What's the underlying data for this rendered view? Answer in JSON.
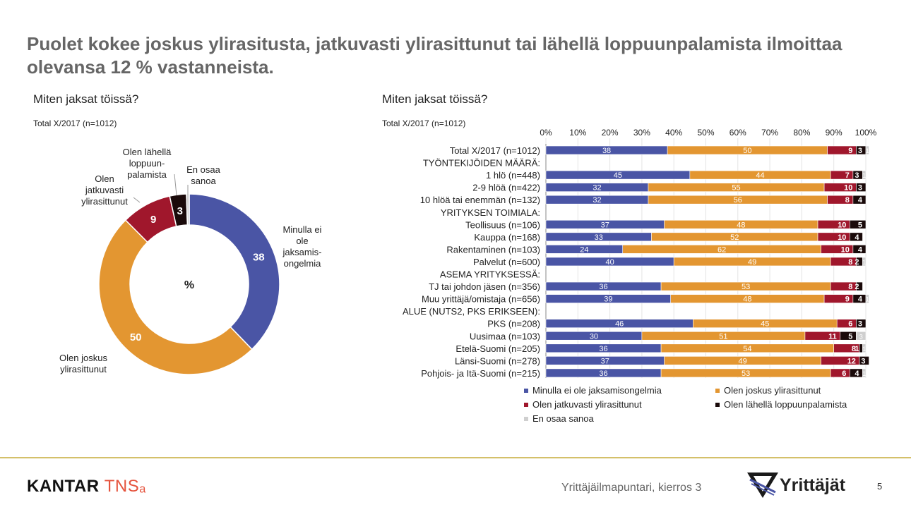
{
  "header": {
    "title": "Puolet kokee joskus ylirasitusta, jatkuvasti ylirasittunut tai lähellä loppuunpalamista ilmoittaa olevansa 12 % vastanneista."
  },
  "left_panel": {
    "question": "Miten jaksat töissä?",
    "sample": "Total X/2017  (n=1012)"
  },
  "right_panel": {
    "question": "Miten jaksat töissä?",
    "sample": "Total X/2017  (n=1012)"
  },
  "footer": {
    "brand_main": "KANTAR ",
    "brand_accent": "TNS",
    "survey": "Yrittäjäilmapuntari, kierros 3",
    "org": "Yrittäjät",
    "page": "5"
  },
  "chart_data": [
    {
      "type": "pie",
      "variant": "donut",
      "center_label": "%",
      "slices": [
        {
          "name": "Minulla ei ole jaksamis-ongelmia",
          "value": 38,
          "color": "#4a55a5"
        },
        {
          "name": "Olen joskus ylirasittunut",
          "value": 50,
          "color": "#e39631"
        },
        {
          "name": "Olen jatkuvasti ylirasittunut",
          "value": 9,
          "color": "#a0172c"
        },
        {
          "name": "Olen lähellä loppuun-palamista",
          "value": 3,
          "color": "#1a0a0a"
        },
        {
          "name": "En osaa sanoa",
          "value": 0.5,
          "color": "#cfcfcf"
        }
      ],
      "value_labels": [
        "38",
        "50",
        "9",
        "3",
        ""
      ],
      "outside_labels": [
        [
          "Minulla ei",
          "ole",
          "jaksamis-",
          "ongelmia"
        ],
        [
          "Olen joskus",
          "ylirasittunut"
        ],
        [
          "Olen",
          "jatkuvasti",
          "ylirasittunut"
        ],
        [
          "Olen lähellä",
          "loppuun-",
          "palamista"
        ],
        [
          "En osaa",
          "sanoa"
        ]
      ]
    },
    {
      "type": "bar",
      "orientation": "horizontal",
      "stacked": true,
      "x_ticks": [
        "0%",
        "10%",
        "20%",
        "30%",
        "40%",
        "50%",
        "60%",
        "70%",
        "80%",
        "90%",
        "100%"
      ],
      "xlim": [
        0,
        100
      ],
      "legend_position": "bottom",
      "series": [
        {
          "name": "Minulla ei ole jaksamisongelmia",
          "color": "#4a55a5"
        },
        {
          "name": "Olen joskus ylirasittunut",
          "color": "#e39631"
        },
        {
          "name": "Olen jatkuvasti ylirasittunut",
          "color": "#a0172c"
        },
        {
          "name": "Olen lähellä loppuunpalamista",
          "color": "#1a0a0a"
        },
        {
          "name": "En osaa sanoa",
          "color": "#cfcfcf"
        }
      ],
      "rows": [
        {
          "label": "Total X/2017 (n=1012)",
          "values": [
            38,
            50,
            9,
            3,
            1
          ]
        },
        {
          "label": "TYÖNTEKIJÖIDEN MÄÄRÄ:",
          "header": true
        },
        {
          "label": "1 hlö (n=448)",
          "values": [
            45,
            44,
            7,
            3,
            1
          ]
        },
        {
          "label": "2-9 hlöä (n=422)",
          "values": [
            32,
            55,
            10,
            3,
            0
          ]
        },
        {
          "label": "10 hlöä tai enemmän (n=132)",
          "values": [
            32,
            56,
            8,
            4,
            0
          ]
        },
        {
          "label": "YRITYKSEN TOIMIALA:",
          "header": true
        },
        {
          "label": "Teollisuus (n=106)",
          "values": [
            37,
            48,
            10,
            5,
            0
          ]
        },
        {
          "label": "Kauppa (n=168)",
          "values": [
            33,
            52,
            10,
            4,
            0
          ]
        },
        {
          "label": "Rakentaminen (n=103)",
          "values": [
            24,
            62,
            10,
            4,
            0
          ]
        },
        {
          "label": "Palvelut (n=600)",
          "values": [
            40,
            49,
            8,
            2,
            1
          ]
        },
        {
          "label": "ASEMA YRITYKSESSÄ:",
          "header": true
        },
        {
          "label": "TJ tai johdon jäsen (n=356)",
          "values": [
            36,
            53,
            8,
            2,
            0
          ]
        },
        {
          "label": "Muu yrittäjä/omistaja (n=656)",
          "values": [
            39,
            48,
            9,
            4,
            1
          ]
        },
        {
          "label": "ALUE (NUTS2, PKS ERIKSEEN):",
          "header": true
        },
        {
          "label": "PKS (n=208)",
          "values": [
            46,
            45,
            6,
            3,
            0
          ]
        },
        {
          "label": "Uusimaa (n=103)",
          "values": [
            30,
            51,
            11,
            5,
            3
          ]
        },
        {
          "label": "Etelä-Suomi (n=205)",
          "values": [
            36,
            54,
            8,
            1,
            1
          ]
        },
        {
          "label": "Länsi-Suomi (n=278)",
          "values": [
            37,
            49,
            12,
            3,
            0
          ]
        },
        {
          "label": "Pohjois- ja Itä-Suomi (n=215)",
          "values": [
            36,
            53,
            6,
            4,
            1
          ]
        }
      ]
    }
  ]
}
